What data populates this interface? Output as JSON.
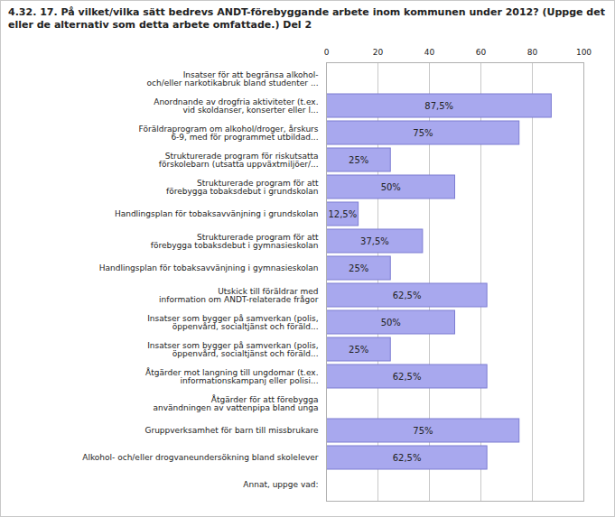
{
  "chart_data": {
    "type": "bar",
    "orientation": "horizontal",
    "title": "4.32. 17. På vilket/vilka sätt bedrevs ANDT-förebyggande arbete inom kommunen under 2012? (Uppge det eller de alternativ som detta arbete omfattade.) Del 2",
    "categories": [
      "Insatser för att begränsa alkohol-\noch/eller narkotikabruk bland studenter ...",
      "Anordnande av drogfria aktiviteter (t.ex.\nvid skoldanser, konserter eller l...",
      "Föräldraprogram om alkohol/droger, årskurs\n6-9, med för programmet utbildad...",
      "Strukturerade program för riskutsatta\nförskolebarn (utsatta uppväxtmiljöer/...",
      "Strukturerade program för att\nförebygga tobaksdebut i grundskolan",
      "Handlingsplan för tobaksavvänjning i grundskolan",
      "Strukturerade program för att\nförebygga tobaksdebut i gymnasieskolan",
      "Handlingsplan för tobaksavvänjning i gymnasieskolan",
      "Utskick till föräldrar med\ninformation om ANDT-relaterade frågor",
      "Insatser som bygger på samverkan (polis,\nöppenvård, socialtjänst och föräld...",
      "Insatser som bygger på samverkan (polis,\nöppenvård, socialtjänst och föräld...",
      "Åtgärder mot langning till ungdomar (t.ex.\ninformationskampanj eller polisi...",
      "Åtgärder för att förebygga\nanvändningen av vattenpipa bland unga",
      "Gruppverksamhet för barn till missbrukare",
      "Alkohol- och/eller drogvaneundersökning bland skolelever",
      "Annat, uppge vad:"
    ],
    "values": [
      0,
      87.5,
      75,
      25,
      50,
      12.5,
      37.5,
      25,
      62.5,
      50,
      25,
      62.5,
      0,
      75,
      62.5,
      0
    ],
    "value_labels": [
      null,
      "87,5%",
      "75%",
      "25%",
      "50%",
      "12,5%",
      "37,5%",
      "25%",
      "62,5%",
      "50%",
      "25%",
      "62,5%",
      null,
      "75%",
      "62,5%",
      null
    ],
    "data_labels": true,
    "color": "#a8a8ee",
    "xlim": [
      0,
      100
    ],
    "xticks": [
      0,
      20,
      40,
      60,
      80,
      100
    ],
    "grid": true
  }
}
